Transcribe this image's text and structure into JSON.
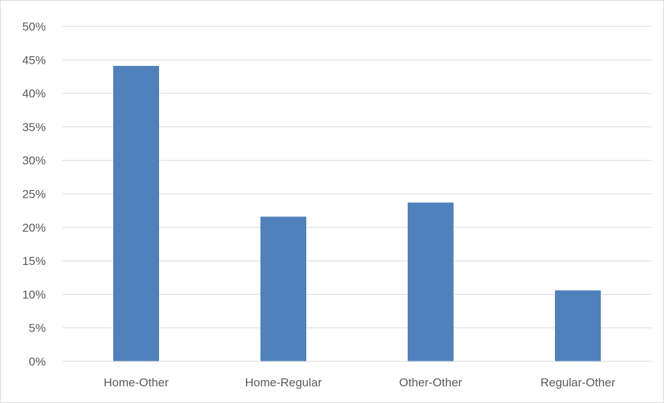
{
  "chart_data": {
    "type": "bar",
    "title": "",
    "xlabel": "",
    "ylabel": "",
    "categories": [
      "Home-Other",
      "Home-Regular",
      "Other-Other",
      "Regular-Other"
    ],
    "values": [
      44.1,
      21.6,
      23.7,
      10.6
    ],
    "ylim": [
      0,
      50
    ],
    "yticks": [
      0,
      5,
      10,
      15,
      20,
      25,
      30,
      35,
      40,
      45,
      50
    ],
    "ytick_labels": [
      "0%",
      "5%",
      "10%",
      "15%",
      "20%",
      "25%",
      "30%",
      "35%",
      "40%",
      "45%",
      "50%"
    ],
    "grid": true,
    "legend": "none",
    "colors": {
      "bar": "#4f81bd",
      "grid": "#d9d9d9",
      "text": "#595959",
      "axis": "#d9d9d9"
    }
  }
}
